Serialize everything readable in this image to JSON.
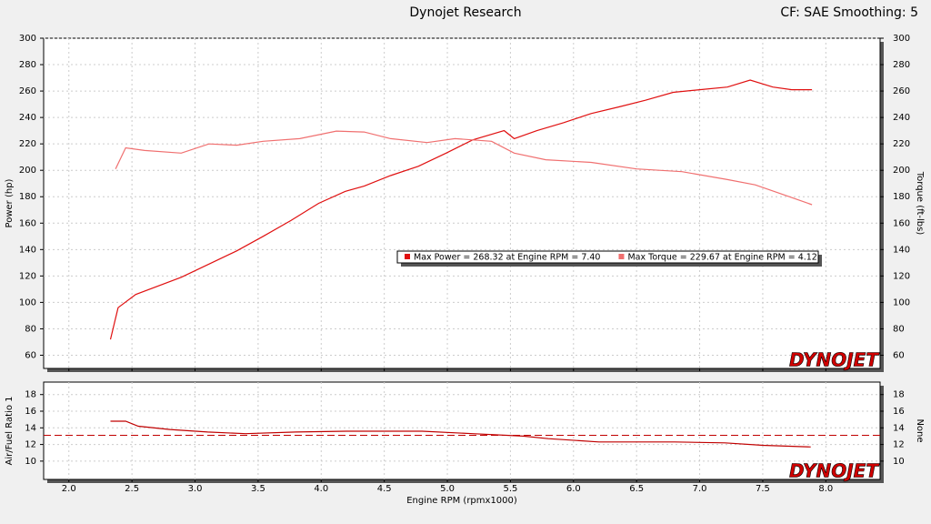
{
  "header": {
    "title": "Dynojet Research",
    "settings": "CF: SAE Smoothing: 5"
  },
  "chart_data": [
    {
      "type": "line",
      "ylabel": "Power (hp)",
      "y2label": "Torque (ft-lbs)",
      "logo": "DYNOJET",
      "grid": true,
      "xlim": [
        1.8,
        8.43
      ],
      "xticks": [
        {
          "value": 2,
          "label": "2.0"
        },
        {
          "value": 2.5,
          "label": "2.5"
        },
        {
          "value": 3,
          "label": "3.0"
        },
        {
          "value": 3.5,
          "label": "3.5"
        },
        {
          "value": 4,
          "label": "4.0"
        },
        {
          "value": 4.5,
          "label": "4.5"
        },
        {
          "value": 5,
          "label": "5.0"
        },
        {
          "value": 5.5,
          "label": "5.5"
        },
        {
          "value": 6,
          "label": "6.0"
        },
        {
          "value": 6.5,
          "label": "6.5"
        },
        {
          "value": 7,
          "label": "7.0"
        },
        {
          "value": 7.5,
          "label": "7.5"
        },
        {
          "value": 8,
          "label": "8.0"
        }
      ],
      "ylim": [
        50,
        300
      ],
      "yticks": [
        60,
        80,
        100,
        120,
        140,
        160,
        180,
        200,
        220,
        240,
        260,
        280,
        300
      ],
      "y2lim": [
        50,
        300
      ],
      "y2ticks": [
        60,
        80,
        100,
        120,
        140,
        160,
        180,
        200,
        220,
        240,
        260,
        280,
        300
      ],
      "series": [
        {
          "name": "Max Power = 268.32 at Engine RPM = 7.40",
          "color": "#e01010",
          "x": [
            2.33,
            2.39,
            2.53,
            2.89,
            3.11,
            3.33,
            3.54,
            3.76,
            3.98,
            4.19,
            4.34,
            4.55,
            4.77,
            4.99,
            5.2,
            5.45,
            5.53,
            5.71,
            5.92,
            6.14,
            6.36,
            6.57,
            6.79,
            7.0,
            7.22,
            7.4,
            7.58,
            7.73,
            7.89
          ],
          "values": [
            72,
            96,
            106,
            119,
            129,
            139,
            150,
            162,
            175,
            184,
            188,
            196,
            203,
            213,
            223,
            230,
            224,
            230,
            236,
            243,
            248,
            253,
            259,
            261,
            263,
            268.32,
            263,
            261,
            261
          ]
        },
        {
          "name": "Max Torque = 229.67 at Engine RPM = 4.12",
          "color": "#f07070",
          "axis": "y2",
          "x": [
            2.37,
            2.45,
            2.6,
            2.89,
            3.11,
            3.33,
            3.54,
            3.83,
            4.12,
            4.34,
            4.55,
            4.84,
            5.06,
            5.35,
            5.53,
            5.78,
            6.14,
            6.5,
            6.86,
            7.22,
            7.44,
            7.65,
            7.89
          ],
          "values": [
            201,
            217,
            215,
            213,
            220,
            219,
            222,
            224,
            229.67,
            229,
            224,
            221,
            224,
            222,
            213,
            208,
            206,
            201,
            199,
            193,
            189,
            182,
            174
          ]
        }
      ]
    },
    {
      "type": "line",
      "ylabel": "Air/Fuel Ratio 1",
      "y2label": "None",
      "logo": "DYNOJET",
      "xlabel": "Engine RPM (rpmx1000)",
      "grid": true,
      "xlim": [
        1.8,
        8.43
      ],
      "xticks": [
        {
          "value": 2,
          "label": "2.0"
        },
        {
          "value": 2.5,
          "label": "2.5"
        },
        {
          "value": 3,
          "label": "3.0"
        },
        {
          "value": 3.5,
          "label": "3.5"
        },
        {
          "value": 4,
          "label": "4.0"
        },
        {
          "value": 4.5,
          "label": "4.5"
        },
        {
          "value": 5,
          "label": "5.0"
        },
        {
          "value": 5.5,
          "label": "5.5"
        },
        {
          "value": 6,
          "label": "6.0"
        },
        {
          "value": 6.5,
          "label": "6.5"
        },
        {
          "value": 7,
          "label": "7.0"
        },
        {
          "value": 7.5,
          "label": "7.5"
        },
        {
          "value": 8,
          "label": "8.0"
        }
      ],
      "ylim": [
        7.8,
        19.5
      ],
      "yticks": [
        10,
        12,
        14,
        16,
        18
      ],
      "y2lim": [
        7.8,
        19.5
      ],
      "y2ticks": [
        10,
        12,
        14,
        16,
        18
      ],
      "hline": 13.1,
      "hline_color": "#c00000",
      "series": [
        {
          "color": "#c00000",
          "x": [
            2.33,
            2.45,
            2.55,
            2.8,
            3.1,
            3.4,
            3.8,
            4.2,
            4.8,
            5.2,
            5.6,
            5.8,
            6.2,
            6.8,
            7.2,
            7.5,
            7.88
          ],
          "values": [
            14.8,
            14.8,
            14.2,
            13.8,
            13.5,
            13.3,
            13.5,
            13.6,
            13.6,
            13.3,
            13.0,
            12.7,
            12.3,
            12.3,
            12.2,
            11.9,
            11.7
          ]
        }
      ]
    }
  ]
}
